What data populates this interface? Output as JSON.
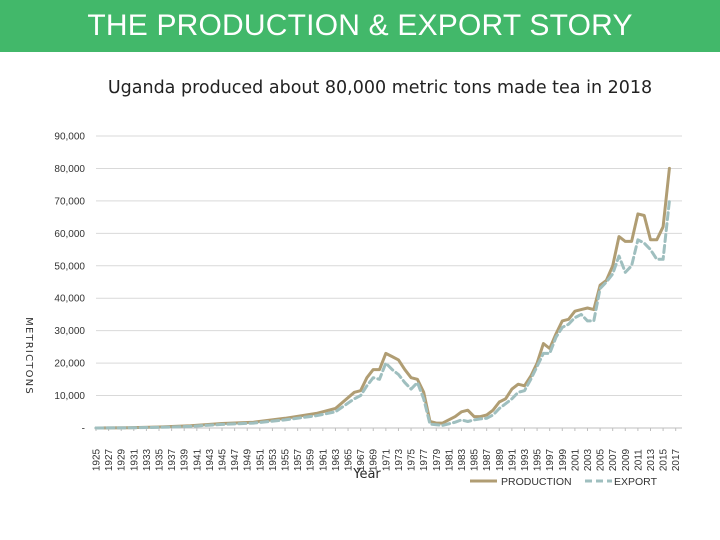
{
  "header": {
    "title": "THE PRODUCTION & EXPORT STORY"
  },
  "colors": {
    "banner": "#42b86a",
    "production": "#b09d73",
    "export": "#9fbfbf",
    "grid": "#d9d9d9"
  },
  "chart_data": {
    "type": "line",
    "title": "Uganda produced about 80,000 metric tons made tea in 2018",
    "xlabel": "Year",
    "ylabel": "METRICTONS",
    "ylim": [
      0,
      90000
    ],
    "y_ticks": [
      0,
      10000,
      20000,
      30000,
      40000,
      50000,
      60000,
      70000,
      80000,
      90000
    ],
    "y_tick_labels": [
      "-",
      "10,000",
      "20,000",
      "30,000",
      "40,000",
      "50,000",
      "60,000",
      "70,000",
      "80,000",
      "90,000"
    ],
    "x_tick_labels": [
      "1925",
      "1927",
      "1929",
      "1931",
      "1933",
      "1935",
      "1937",
      "1939",
      "1941",
      "1943",
      "1945",
      "1947",
      "1949",
      "1951",
      "1953",
      "1955",
      "1957",
      "1959",
      "1961",
      "1963",
      "1965",
      "1967",
      "1969",
      "1971",
      "1973",
      "1975",
      "1977",
      "1979",
      "1981",
      "1983",
      "1985",
      "1987",
      "1989",
      "1991",
      "1993",
      "1995",
      "1997",
      "1999",
      "2001",
      "2003",
      "2005",
      "2007",
      "2009",
      "2011",
      "2013",
      "2015",
      "2017"
    ],
    "grid": true,
    "legend_position": "bottom-right",
    "series": [
      {
        "name": "PRODUCTION",
        "style": "solid",
        "points": [
          [
            1925,
            0
          ],
          [
            1930,
            100
          ],
          [
            1935,
            300
          ],
          [
            1940,
            700
          ],
          [
            1945,
            1400
          ],
          [
            1950,
            1800
          ],
          [
            1955,
            3000
          ],
          [
            1960,
            4500
          ],
          [
            1963,
            6000
          ],
          [
            1966,
            11000
          ],
          [
            1967,
            11500
          ],
          [
            1968,
            15500
          ],
          [
            1969,
            18000
          ],
          [
            1970,
            18000
          ],
          [
            1971,
            23000
          ],
          [
            1972,
            22000
          ],
          [
            1973,
            21000
          ],
          [
            1974,
            18000
          ],
          [
            1975,
            15500
          ],
          [
            1976,
            15000
          ],
          [
            1977,
            11000
          ],
          [
            1978,
            2000
          ],
          [
            1979,
            1500
          ],
          [
            1980,
            1500
          ],
          [
            1982,
            3500
          ],
          [
            1983,
            5000
          ],
          [
            1984,
            5500
          ],
          [
            1985,
            3500
          ],
          [
            1986,
            3500
          ],
          [
            1987,
            4000
          ],
          [
            1988,
            5500
          ],
          [
            1989,
            8000
          ],
          [
            1990,
            9000
          ],
          [
            1991,
            12000
          ],
          [
            1992,
            13500
          ],
          [
            1993,
            13000
          ],
          [
            1994,
            16000
          ],
          [
            1995,
            20000
          ],
          [
            1996,
            26000
          ],
          [
            1997,
            24500
          ],
          [
            1998,
            29000
          ],
          [
            1999,
            33000
          ],
          [
            2000,
            33500
          ],
          [
            2001,
            36000
          ],
          [
            2002,
            36500
          ],
          [
            2003,
            37000
          ],
          [
            2004,
            36500
          ],
          [
            2005,
            44000
          ],
          [
            2006,
            45500
          ],
          [
            2007,
            50000
          ],
          [
            2008,
            59000
          ],
          [
            2009,
            57500
          ],
          [
            2010,
            57500
          ],
          [
            2011,
            66000
          ],
          [
            2012,
            65500
          ],
          [
            2013,
            58000
          ],
          [
            2014,
            58000
          ],
          [
            2015,
            62000
          ],
          [
            2016,
            80000
          ]
        ]
      },
      {
        "name": "EXPORT",
        "style": "dashed",
        "points": [
          [
            1925,
            0
          ],
          [
            1930,
            50
          ],
          [
            1935,
            200
          ],
          [
            1940,
            500
          ],
          [
            1945,
            1100
          ],
          [
            1950,
            1500
          ],
          [
            1955,
            2500
          ],
          [
            1960,
            3800
          ],
          [
            1963,
            5000
          ],
          [
            1966,
            9000
          ],
          [
            1967,
            10000
          ],
          [
            1968,
            13000
          ],
          [
            1969,
            15500
          ],
          [
            1970,
            15000
          ],
          [
            1971,
            20000
          ],
          [
            1972,
            18000
          ],
          [
            1973,
            16500
          ],
          [
            1974,
            14000
          ],
          [
            1975,
            12000
          ],
          [
            1976,
            14000
          ],
          [
            1977,
            9000
          ],
          [
            1978,
            1200
          ],
          [
            1979,
            1000
          ],
          [
            1980,
            800
          ],
          [
            1982,
            1800
          ],
          [
            1983,
            2500
          ],
          [
            1984,
            2000
          ],
          [
            1985,
            2500
          ],
          [
            1986,
            2800
          ],
          [
            1987,
            3000
          ],
          [
            1988,
            4000
          ],
          [
            1989,
            6000
          ],
          [
            1990,
            7500
          ],
          [
            1991,
            9000
          ],
          [
            1992,
            11000
          ],
          [
            1993,
            11500
          ],
          [
            1994,
            15000
          ],
          [
            1995,
            19000
          ],
          [
            1996,
            23000
          ],
          [
            1997,
            23000
          ],
          [
            1998,
            28000
          ],
          [
            1999,
            31000
          ],
          [
            2000,
            32000
          ],
          [
            2001,
            34000
          ],
          [
            2002,
            35000
          ],
          [
            2003,
            33000
          ],
          [
            2004,
            33000
          ],
          [
            2005,
            43000
          ],
          [
            2006,
            45000
          ],
          [
            2007,
            47500
          ],
          [
            2008,
            53000
          ],
          [
            2009,
            48000
          ],
          [
            2010,
            50000
          ],
          [
            2011,
            58000
          ],
          [
            2012,
            57000
          ],
          [
            2013,
            55000
          ],
          [
            2014,
            52000
          ],
          [
            2015,
            52000
          ],
          [
            2016,
            70000
          ]
        ]
      }
    ]
  }
}
